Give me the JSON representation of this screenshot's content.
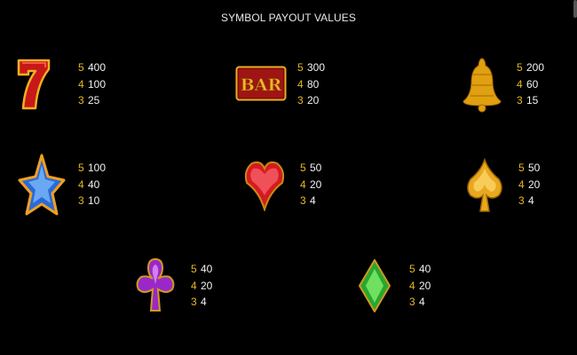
{
  "title": "SYMBOL PAYOUT VALUES",
  "colors": {
    "background": "#000000",
    "count": "#e9b820",
    "value": "#f2f2f2",
    "title": "#e8e8e8"
  },
  "symbols": [
    {
      "name": "seven",
      "icon": "lucky-seven-icon",
      "payouts": [
        {
          "count": "5",
          "value": "400"
        },
        {
          "count": "4",
          "value": "100"
        },
        {
          "count": "3",
          "value": "25"
        }
      ]
    },
    {
      "name": "bar",
      "icon": "bar-icon",
      "label": "BAR",
      "payouts": [
        {
          "count": "5",
          "value": "300"
        },
        {
          "count": "4",
          "value": "80"
        },
        {
          "count": "3",
          "value": "20"
        }
      ]
    },
    {
      "name": "bell",
      "icon": "bell-icon",
      "payouts": [
        {
          "count": "5",
          "value": "200"
        },
        {
          "count": "4",
          "value": "60"
        },
        {
          "count": "3",
          "value": "15"
        }
      ]
    },
    {
      "name": "star",
      "icon": "star-icon",
      "payouts": [
        {
          "count": "5",
          "value": "100"
        },
        {
          "count": "4",
          "value": "40"
        },
        {
          "count": "3",
          "value": "10"
        }
      ]
    },
    {
      "name": "heart",
      "icon": "heart-icon",
      "payouts": [
        {
          "count": "5",
          "value": "50"
        },
        {
          "count": "4",
          "value": "20"
        },
        {
          "count": "3",
          "value": "4"
        }
      ]
    },
    {
      "name": "spade",
      "icon": "spade-icon",
      "payouts": [
        {
          "count": "5",
          "value": "50"
        },
        {
          "count": "4",
          "value": "20"
        },
        {
          "count": "3",
          "value": "4"
        }
      ]
    },
    {
      "name": "club",
      "icon": "club-icon",
      "payouts": [
        {
          "count": "5",
          "value": "40"
        },
        {
          "count": "4",
          "value": "20"
        },
        {
          "count": "3",
          "value": "4"
        }
      ]
    },
    {
      "name": "diamond",
      "icon": "diamond-icon",
      "payouts": [
        {
          "count": "5",
          "value": "40"
        },
        {
          "count": "4",
          "value": "20"
        },
        {
          "count": "3",
          "value": "4"
        }
      ]
    }
  ]
}
